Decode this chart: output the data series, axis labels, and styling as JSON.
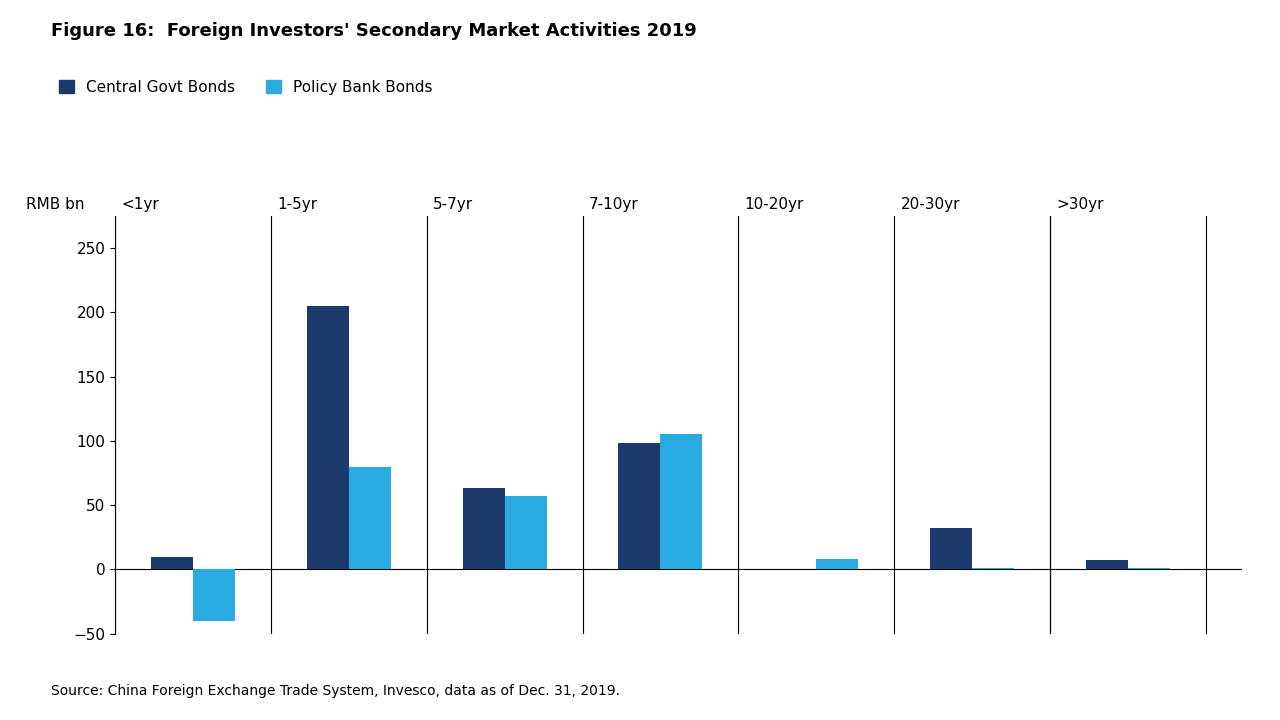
{
  "title": "Figure 16:  Foreign Investors' Secondary Market Activities 2019",
  "ylabel_top": "RMB bn",
  "source": "Source: China Foreign Exchange Trade System, Invesco, data as of Dec. 31, 2019.",
  "categories": [
    "<1yr",
    "1-5yr",
    "5-7yr",
    "7-10yr",
    "10-20yr",
    "20-30yr",
    ">30yr"
  ],
  "central_govt": [
    10,
    205,
    63,
    98,
    0,
    32,
    7
  ],
  "policy_bank": [
    -40,
    80,
    57,
    105,
    8,
    1,
    1
  ],
  "central_govt_color": "#1b3a6b",
  "policy_bank_color": "#29abe2",
  "ylim": [
    -50,
    275
  ],
  "yticks": [
    -50,
    0,
    50,
    100,
    150,
    200,
    250
  ],
  "bar_width": 0.35,
  "bg_color": "#ffffff",
  "legend_central": "Central Govt Bonds",
  "legend_policy": "Policy Bank Bonds",
  "title_fontsize": 13,
  "label_fontsize": 11,
  "tick_fontsize": 11,
  "source_fontsize": 10
}
